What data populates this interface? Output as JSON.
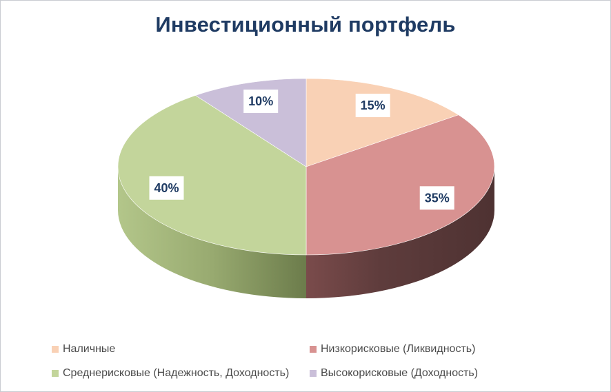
{
  "chart_data": {
    "type": "pie",
    "title": "Инвестиционный портфель",
    "categories": [
      "Наличные",
      "Низкорисковые (Ликвидность)",
      "Среднерисковые (Надежность, Доходность)",
      "Высокорисковые (Доходность)"
    ],
    "values": [
      15,
      35,
      40,
      10
    ],
    "data_labels": [
      "15%",
      "35%",
      "40%",
      "10%"
    ],
    "colors": [
      "#f9d1b5",
      "#d89291",
      "#c3d59b",
      "#cabfd9"
    ],
    "legend_position": "bottom",
    "three_d": true
  }
}
